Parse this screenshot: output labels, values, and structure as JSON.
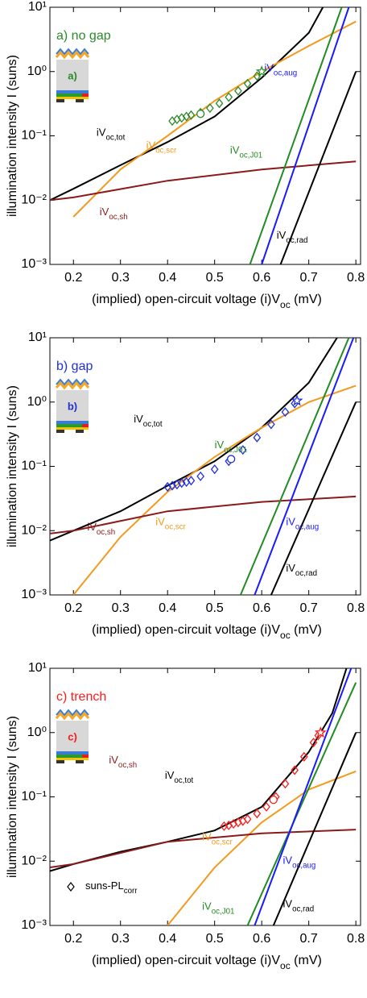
{
  "chart_data": [
    {
      "type": "line",
      "title": "a) no gap",
      "inset_label": "a)",
      "xlabel": "(implied) open-circuit voltage (i)Voc (mV)",
      "ylabel": "illumination intensity I (suns)",
      "xlim": [
        0.15,
        0.81
      ],
      "ylim": [
        0.001,
        10
      ],
      "log_y": true,
      "xticks": [
        0.2,
        0.3,
        0.4,
        0.5,
        0.6,
        0.7,
        0.8
      ],
      "yticks": [
        {
          "value": 0.001,
          "label": "10⁻³"
        },
        {
          "value": 0.01,
          "label": "10⁻²"
        },
        {
          "value": 0.1,
          "label": "10⁻¹"
        },
        {
          "value": 1,
          "label": "10⁰"
        },
        {
          "value": 10,
          "label": "10¹"
        }
      ],
      "series": [
        {
          "name": "iVoc,tot",
          "color": "#000000",
          "x": [
            0.15,
            0.2,
            0.3,
            0.4,
            0.5,
            0.6,
            0.7,
            0.73
          ],
          "values": [
            0.01,
            0.015,
            0.035,
            0.08,
            0.2,
            0.8,
            4,
            10
          ]
        },
        {
          "name": "iVoc,scr",
          "color": "#f39a1e",
          "x": [
            0.2,
            0.3,
            0.4,
            0.5,
            0.6,
            0.7,
            0.8
          ],
          "values": [
            0.0055,
            0.03,
            0.1,
            0.35,
            1,
            2.5,
            6
          ]
        },
        {
          "name": "iVoc,sh",
          "color": "#8b1a1a",
          "x": [
            0.15,
            0.2,
            0.4,
            0.6,
            0.8
          ],
          "values": [
            0.01,
            0.011,
            0.02,
            0.03,
            0.04
          ]
        },
        {
          "name": "iVoc,J01",
          "color": "#228b22",
          "x": [
            0.575,
            0.77
          ],
          "values": [
            0.001,
            10
          ]
        },
        {
          "name": "iVoc,aug",
          "color": "#1a1aff",
          "x": [
            0.6,
            0.785
          ],
          "values": [
            0.001,
            10
          ]
        },
        {
          "name": "iVoc,rad",
          "color": "#000000",
          "x": [
            0.64,
            0.8
          ],
          "values": [
            0.001,
            1
          ]
        },
        {
          "marker": "diamond",
          "color": "#2a8a2a",
          "x": [
            0.41,
            0.42,
            0.43,
            0.44,
            0.45,
            0.47,
            0.49,
            0.51,
            0.53,
            0.55,
            0.57,
            0.59
          ],
          "values": [
            0.17,
            0.18,
            0.19,
            0.2,
            0.21,
            0.23,
            0.27,
            0.32,
            0.4,
            0.5,
            0.65,
            0.85
          ]
        },
        {
          "marker": "circle",
          "color": "#2a8a2a",
          "x": [
            0.47
          ],
          "values": [
            0.22
          ]
        },
        {
          "marker": "star",
          "color": "#2a8a2a",
          "x": [
            0.6
          ],
          "values": [
            1
          ]
        }
      ]
    },
    {
      "type": "line",
      "title": "b) gap",
      "inset_label": "b)",
      "xlabel": "(implied) open-circuit voltage (i)Voc (mV)",
      "ylabel": "illumination intensity I (suns)",
      "xlim": [
        0.15,
        0.81
      ],
      "ylim": [
        0.001,
        10
      ],
      "log_y": true,
      "xticks": [
        0.2,
        0.3,
        0.4,
        0.5,
        0.6,
        0.7,
        0.8
      ],
      "yticks": [
        {
          "value": 0.001,
          "label": "10⁻³"
        },
        {
          "value": 0.01,
          "label": "10⁻²"
        },
        {
          "value": 0.1,
          "label": "10⁻¹"
        },
        {
          "value": 1,
          "label": "10⁰"
        },
        {
          "value": 10,
          "label": "10¹"
        }
      ],
      "series": [
        {
          "name": "iVoc,tot",
          "color": "#000000",
          "x": [
            0.15,
            0.2,
            0.3,
            0.4,
            0.5,
            0.6,
            0.7,
            0.76
          ],
          "values": [
            0.007,
            0.01,
            0.02,
            0.05,
            0.12,
            0.4,
            2,
            10
          ]
        },
        {
          "name": "iVoc,scr",
          "color": "#f39a1e",
          "x": [
            0.2,
            0.3,
            0.4,
            0.5,
            0.6,
            0.7,
            0.8
          ],
          "values": [
            0.001,
            0.008,
            0.04,
            0.14,
            0.4,
            1,
            1.8
          ]
        },
        {
          "name": "iVoc,sh",
          "color": "#8b1a1a",
          "x": [
            0.15,
            0.2,
            0.4,
            0.6,
            0.8
          ],
          "values": [
            0.009,
            0.01,
            0.02,
            0.028,
            0.034
          ]
        },
        {
          "name": "iVoc,J01",
          "color": "#228b22",
          "x": [
            0.555,
            0.785
          ],
          "values": [
            0.001,
            10
          ]
        },
        {
          "name": "iVoc,aug",
          "color": "#1a1aff",
          "x": [
            0.585,
            0.795
          ],
          "values": [
            0.001,
            10
          ]
        },
        {
          "name": "iVoc,rad",
          "color": "#000000",
          "x": [
            0.62,
            0.8
          ],
          "values": [
            0.001,
            1
          ]
        },
        {
          "marker": "diamond",
          "color": "#1f2fe0",
          "x": [
            0.4,
            0.41,
            0.42,
            0.43,
            0.44,
            0.45,
            0.47,
            0.5,
            0.53,
            0.56,
            0.59,
            0.62,
            0.65,
            0.67
          ],
          "values": [
            0.048,
            0.05,
            0.052,
            0.055,
            0.057,
            0.06,
            0.07,
            0.09,
            0.12,
            0.18,
            0.28,
            0.45,
            0.7,
            0.95
          ]
        },
        {
          "marker": "circle",
          "color": "#1f2fe0",
          "x": [
            0.535
          ],
          "values": [
            0.13
          ]
        },
        {
          "marker": "star",
          "color": "#1f2fe0",
          "x": [
            0.675
          ],
          "values": [
            1.05
          ]
        }
      ]
    },
    {
      "type": "line",
      "title": "c) trench",
      "inset_label": "c)",
      "xlabel": "(implied) open-circuit voltage (i)Voc (mV)",
      "ylabel": "illumination intensity I (suns)",
      "legend_label": "suns-PLcorr",
      "xlim": [
        0.15,
        0.81
      ],
      "ylim": [
        0.001,
        10
      ],
      "log_y": true,
      "xticks": [
        0.2,
        0.3,
        0.4,
        0.5,
        0.6,
        0.7,
        0.8
      ],
      "yticks": [
        {
          "value": 0.001,
          "label": "10⁻³"
        },
        {
          "value": 0.01,
          "label": "10⁻²"
        },
        {
          "value": 0.1,
          "label": "10⁻¹"
        },
        {
          "value": 1,
          "label": "10⁰"
        },
        {
          "value": 10,
          "label": "10¹"
        }
      ],
      "series": [
        {
          "name": "iVoc,tot",
          "color": "#000000",
          "x": [
            0.15,
            0.2,
            0.3,
            0.4,
            0.5,
            0.6,
            0.7,
            0.75,
            0.78
          ],
          "values": [
            0.007,
            0.009,
            0.014,
            0.02,
            0.03,
            0.07,
            0.5,
            2,
            10
          ]
        },
        {
          "name": "iVoc,scr",
          "color": "#f39a1e",
          "x": [
            0.4,
            0.5,
            0.6,
            0.7,
            0.8
          ],
          "values": [
            0.001,
            0.008,
            0.04,
            0.13,
            0.25
          ]
        },
        {
          "name": "iVoc,sh",
          "color": "#8b1a1a",
          "x": [
            0.15,
            0.2,
            0.4,
            0.6,
            0.8
          ],
          "values": [
            0.008,
            0.009,
            0.02,
            0.027,
            0.031
          ]
        },
        {
          "name": "iVoc,J01",
          "color": "#228b22",
          "x": [
            0.57,
            0.8
          ],
          "values": [
            0.001,
            6
          ]
        },
        {
          "name": "iVoc,aug",
          "color": "#1a1aff",
          "x": [
            0.585,
            0.79
          ],
          "values": [
            0.001,
            10
          ]
        },
        {
          "name": "iVoc,rad",
          "color": "#000000",
          "x": [
            0.625,
            0.8
          ],
          "values": [
            0.001,
            1
          ]
        },
        {
          "marker": "diamond",
          "color": "#ff1a1a",
          "x": [
            0.52,
            0.53,
            0.54,
            0.55,
            0.56,
            0.57,
            0.59,
            0.61,
            0.63,
            0.65,
            0.67,
            0.69,
            0.71,
            0.72
          ],
          "values": [
            0.035,
            0.036,
            0.038,
            0.04,
            0.042,
            0.045,
            0.055,
            0.07,
            0.1,
            0.16,
            0.26,
            0.42,
            0.7,
            0.9
          ]
        },
        {
          "marker": "circle",
          "color": "#ff1a1a",
          "x": [
            0.625
          ],
          "values": [
            0.09
          ]
        },
        {
          "marker": "star",
          "color": "#ff1a1a",
          "x": [
            0.725
          ],
          "values": [
            1
          ]
        }
      ]
    }
  ]
}
